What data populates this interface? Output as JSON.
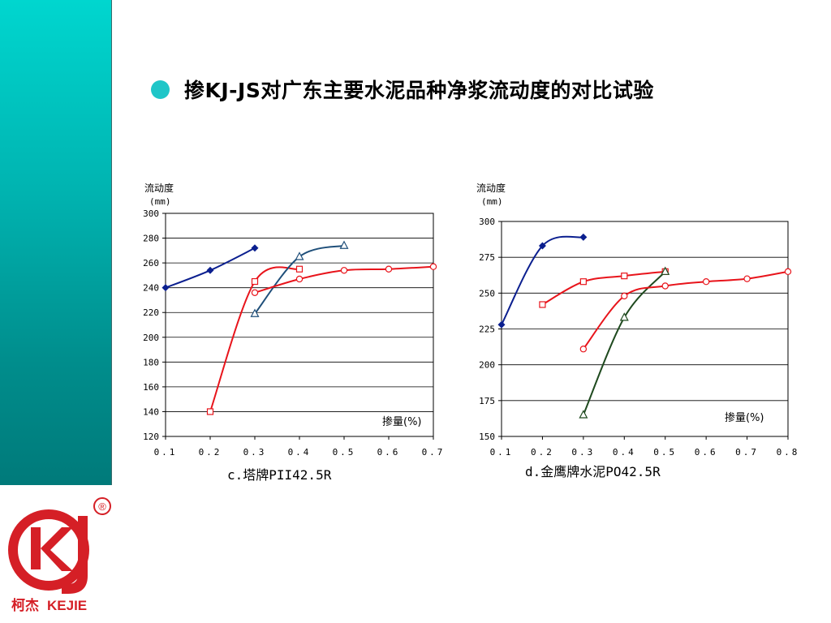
{
  "slide": {
    "title": "掺KJ-JS对广东主要水泥品种净浆流动度的对比试验"
  },
  "logo": {
    "brand_cn": "柯杰",
    "brand_en": "KEJIE",
    "registered_mark": "®",
    "monogram": "KJ",
    "color": "#d51f26"
  },
  "colors": {
    "band_top": "#00d6cf",
    "band_bottom": "#007a7a",
    "bullet": "#1fc6c8"
  },
  "chart_data": [
    {
      "type": "line",
      "caption": "c.塔牌PII42.5R",
      "ylabel_line1": "流动度",
      "ylabel_line2": "(mm)",
      "xlabel": "掺量(%)",
      "ylim": [
        120,
        300
      ],
      "xlim": [
        0.1,
        0.7
      ],
      "y_ticks": [
        300,
        280,
        260,
        240,
        220,
        200,
        180,
        160,
        140,
        120
      ],
      "x_ticks": [
        "0.1",
        "0.2",
        "0.3",
        "0.4",
        "0.5",
        "0.6",
        "0.7"
      ],
      "grid": true,
      "series": [
        {
          "marker": "diamond",
          "color": "#0b1f8f",
          "points": [
            [
              0.1,
              240
            ],
            [
              0.2,
              254
            ],
            [
              0.3,
              272
            ]
          ]
        },
        {
          "marker": "square",
          "color": "#e8141b",
          "points": [
            [
              0.2,
              140
            ],
            [
              0.3,
              245
            ],
            [
              0.4,
              255
            ]
          ]
        },
        {
          "marker": "triangle",
          "color": "#1f4f7a",
          "points": [
            [
              0.3,
              219
            ],
            [
              0.4,
              265
            ],
            [
              0.5,
              274
            ]
          ]
        },
        {
          "marker": "circle",
          "color": "#e8141b",
          "points": [
            [
              0.3,
              236
            ],
            [
              0.4,
              247
            ],
            [
              0.5,
              254
            ],
            [
              0.6,
              255
            ],
            [
              0.7,
              257
            ]
          ]
        }
      ]
    },
    {
      "type": "line",
      "caption": "d.金鹰牌水泥PO42.5R",
      "ylabel_line1": "流动度",
      "ylabel_line2": "(mm)",
      "xlabel": "掺量(%)",
      "ylim": [
        150,
        300
      ],
      "xlim": [
        0.1,
        0.8
      ],
      "y_ticks": [
        300,
        275,
        250,
        225,
        200,
        175,
        150
      ],
      "x_ticks": [
        "0.1",
        "0.2",
        "0.3",
        "0.4",
        "0.5",
        "0.6",
        "0.7",
        "0.8"
      ],
      "grid": true,
      "series": [
        {
          "marker": "diamond",
          "color": "#0b1f8f",
          "points": [
            [
              0.1,
              228
            ],
            [
              0.2,
              283
            ],
            [
              0.3,
              289
            ]
          ]
        },
        {
          "marker": "square",
          "color": "#e8141b",
          "points": [
            [
              0.2,
              242
            ],
            [
              0.3,
              258
            ],
            [
              0.4,
              262
            ],
            [
              0.5,
              265
            ]
          ]
        },
        {
          "marker": "triangle",
          "color": "#1f4a1f",
          "points": [
            [
              0.3,
              165
            ],
            [
              0.4,
              233
            ],
            [
              0.5,
              265
            ]
          ]
        },
        {
          "marker": "circle",
          "color": "#e8141b",
          "points": [
            [
              0.3,
              211
            ],
            [
              0.4,
              248
            ],
            [
              0.5,
              255
            ],
            [
              0.6,
              258
            ],
            [
              0.7,
              260
            ],
            [
              0.8,
              265
            ]
          ]
        }
      ]
    }
  ]
}
